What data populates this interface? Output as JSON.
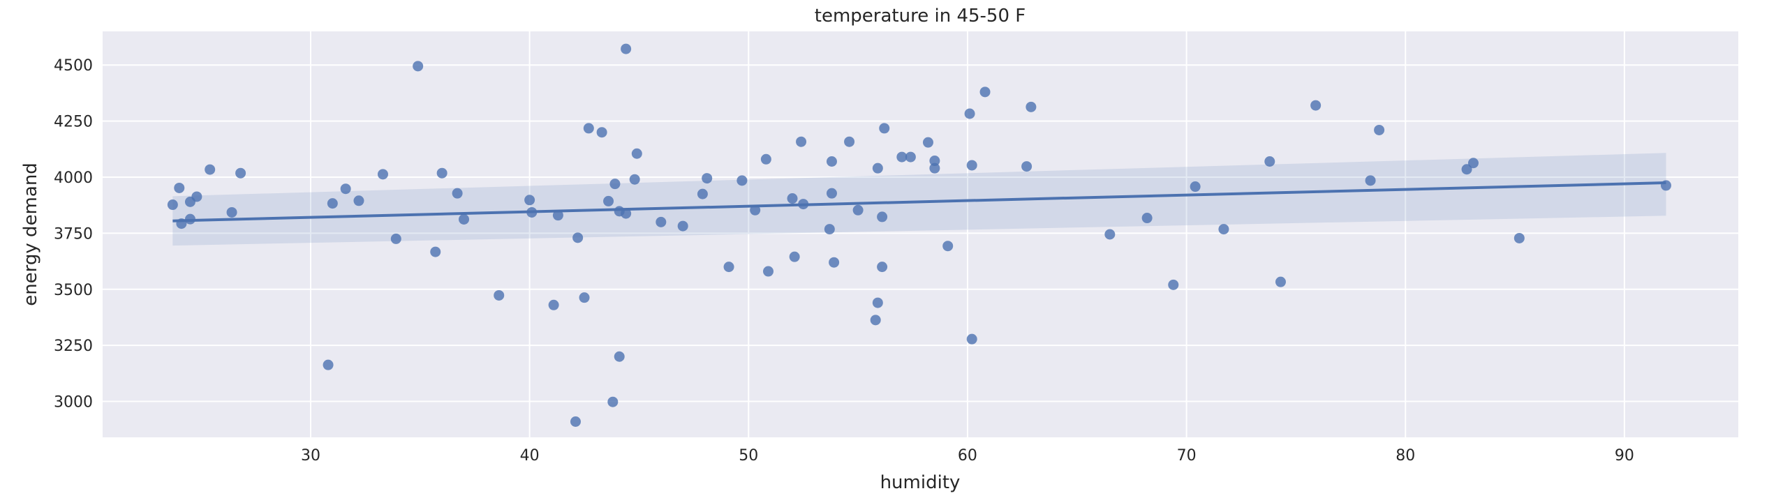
{
  "chart_data": {
    "type": "scatter",
    "title": "temperature in 45-50 F",
    "xlabel": "humidity",
    "ylabel": "energy demand",
    "xlim": [
      20.5,
      95.2
    ],
    "ylim": [
      2840,
      4650
    ],
    "xticks": [
      30,
      40,
      50,
      60,
      70,
      80,
      90
    ],
    "yticks": [
      3000,
      3250,
      3500,
      3750,
      4000,
      4250,
      4500
    ],
    "grid": true,
    "colors": {
      "background": "#eaeaf2",
      "grid": "#ffffff",
      "point": "#4c72b0",
      "line": "#4c72b0",
      "band": "#4c72b0"
    },
    "regression": {
      "x": [
        23.7,
        91.9
      ],
      "y": [
        3805,
        3975
      ],
      "ci_lower": [
        3695,
        3828
      ],
      "ci_upper": [
        3915,
        4108
      ]
    },
    "points": [
      {
        "x": 23.7,
        "y": 3877
      },
      {
        "x": 24.0,
        "y": 3952
      },
      {
        "x": 24.1,
        "y": 3793
      },
      {
        "x": 24.5,
        "y": 3813
      },
      {
        "x": 24.5,
        "y": 3890
      },
      {
        "x": 24.8,
        "y": 3913
      },
      {
        "x": 25.4,
        "y": 4034
      },
      {
        "x": 26.4,
        "y": 3843
      },
      {
        "x": 26.8,
        "y": 4018
      },
      {
        "x": 30.8,
        "y": 3163
      },
      {
        "x": 31.0,
        "y": 3883
      },
      {
        "x": 31.6,
        "y": 3948
      },
      {
        "x": 32.2,
        "y": 3895
      },
      {
        "x": 33.3,
        "y": 4013
      },
      {
        "x": 33.9,
        "y": 3725
      },
      {
        "x": 34.9,
        "y": 4495
      },
      {
        "x": 35.7,
        "y": 3667
      },
      {
        "x": 36.0,
        "y": 4018
      },
      {
        "x": 36.7,
        "y": 3928
      },
      {
        "x": 37.0,
        "y": 3812
      },
      {
        "x": 38.6,
        "y": 3473
      },
      {
        "x": 40.0,
        "y": 3898
      },
      {
        "x": 40.1,
        "y": 3843
      },
      {
        "x": 41.1,
        "y": 3430
      },
      {
        "x": 41.3,
        "y": 3830
      },
      {
        "x": 42.1,
        "y": 2910
      },
      {
        "x": 42.2,
        "y": 3730
      },
      {
        "x": 42.5,
        "y": 3463
      },
      {
        "x": 42.7,
        "y": 4218
      },
      {
        "x": 43.3,
        "y": 4200
      },
      {
        "x": 43.6,
        "y": 3893
      },
      {
        "x": 43.8,
        "y": 2998
      },
      {
        "x": 43.9,
        "y": 3970
      },
      {
        "x": 44.1,
        "y": 3200
      },
      {
        "x": 44.1,
        "y": 3848
      },
      {
        "x": 44.4,
        "y": 4572
      },
      {
        "x": 44.4,
        "y": 3838
      },
      {
        "x": 44.8,
        "y": 3990
      },
      {
        "x": 44.9,
        "y": 4105
      },
      {
        "x": 46.0,
        "y": 3800
      },
      {
        "x": 47.0,
        "y": 3782
      },
      {
        "x": 47.9,
        "y": 3925
      },
      {
        "x": 48.1,
        "y": 3995
      },
      {
        "x": 49.1,
        "y": 3600
      },
      {
        "x": 49.7,
        "y": 3985
      },
      {
        "x": 50.3,
        "y": 3853
      },
      {
        "x": 50.8,
        "y": 4080
      },
      {
        "x": 50.9,
        "y": 3580
      },
      {
        "x": 52.0,
        "y": 3905
      },
      {
        "x": 52.1,
        "y": 3645
      },
      {
        "x": 52.4,
        "y": 4158
      },
      {
        "x": 52.5,
        "y": 3880
      },
      {
        "x": 53.7,
        "y": 3768
      },
      {
        "x": 53.8,
        "y": 3928
      },
      {
        "x": 53.8,
        "y": 4070
      },
      {
        "x": 53.9,
        "y": 3620
      },
      {
        "x": 54.6,
        "y": 4158
      },
      {
        "x": 55.0,
        "y": 3853
      },
      {
        "x": 55.8,
        "y": 3363
      },
      {
        "x": 55.9,
        "y": 3440
      },
      {
        "x": 55.9,
        "y": 4040
      },
      {
        "x": 56.1,
        "y": 3600
      },
      {
        "x": 56.1,
        "y": 3823
      },
      {
        "x": 56.2,
        "y": 4218
      },
      {
        "x": 57.0,
        "y": 4090
      },
      {
        "x": 57.4,
        "y": 4090
      },
      {
        "x": 58.2,
        "y": 4155
      },
      {
        "x": 58.5,
        "y": 4040
      },
      {
        "x": 58.5,
        "y": 4073
      },
      {
        "x": 59.1,
        "y": 3693
      },
      {
        "x": 60.1,
        "y": 4283
      },
      {
        "x": 60.2,
        "y": 4053
      },
      {
        "x": 60.2,
        "y": 3278
      },
      {
        "x": 60.8,
        "y": 4380
      },
      {
        "x": 62.7,
        "y": 4048
      },
      {
        "x": 62.9,
        "y": 4313
      },
      {
        "x": 66.5,
        "y": 3745
      },
      {
        "x": 68.2,
        "y": 3818
      },
      {
        "x": 69.4,
        "y": 3520
      },
      {
        "x": 70.4,
        "y": 3958
      },
      {
        "x": 71.7,
        "y": 3768
      },
      {
        "x": 73.8,
        "y": 4070
      },
      {
        "x": 74.3,
        "y": 3533
      },
      {
        "x": 75.9,
        "y": 4320
      },
      {
        "x": 78.4,
        "y": 3985
      },
      {
        "x": 78.8,
        "y": 4210
      },
      {
        "x": 82.8,
        "y": 4035
      },
      {
        "x": 83.1,
        "y": 4063
      },
      {
        "x": 85.2,
        "y": 3728
      },
      {
        "x": 91.9,
        "y": 3963
      }
    ]
  }
}
